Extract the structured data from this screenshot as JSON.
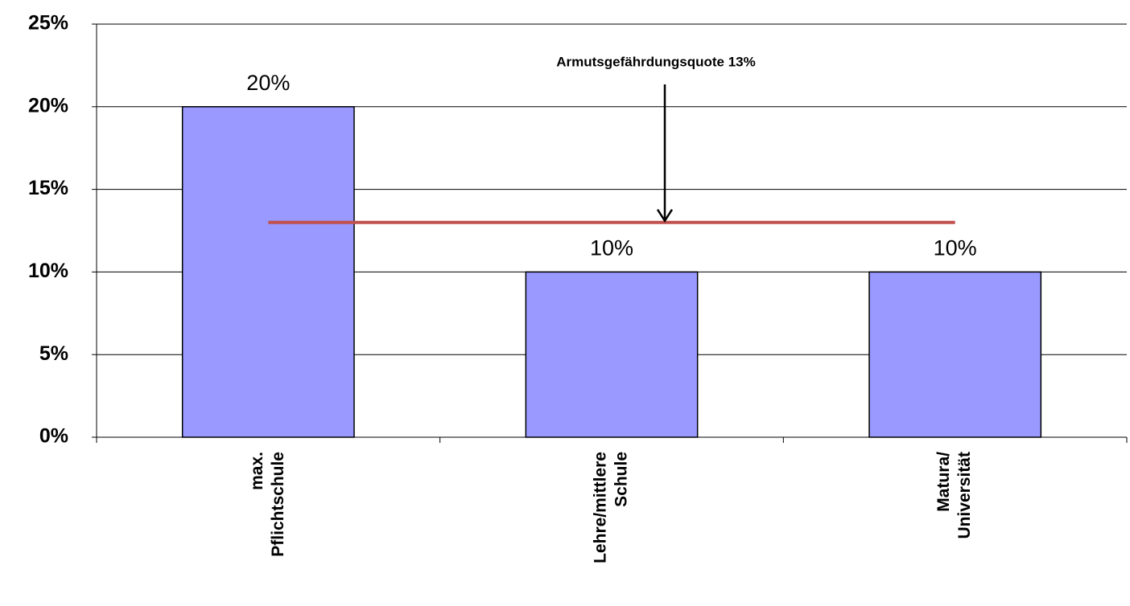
{
  "chart_data": {
    "type": "bar",
    "categories": [
      [
        "max.",
        "Pflichtschule"
      ],
      [
        "Lehre/mittlere",
        "Schule"
      ],
      [
        "Matura/",
        "Universität"
      ]
    ],
    "values": [
      20,
      10,
      10
    ],
    "value_labels": [
      "20%",
      "10%",
      "10%"
    ],
    "color": "#9999ff",
    "ylim": [
      0,
      25
    ],
    "yticks": [
      {
        "value": 0,
        "label": "0%"
      },
      {
        "value": 5,
        "label": "5%"
      },
      {
        "value": 10,
        "label": "10%"
      },
      {
        "value": 15,
        "label": "15%"
      },
      {
        "value": 20,
        "label": "20%"
      },
      {
        "value": 25,
        "label": "25%"
      }
    ],
    "grid": true,
    "reference_line": {
      "value": 13,
      "label": "Armutsgefährdungsquote 13%",
      "color": "#c0504d"
    }
  }
}
